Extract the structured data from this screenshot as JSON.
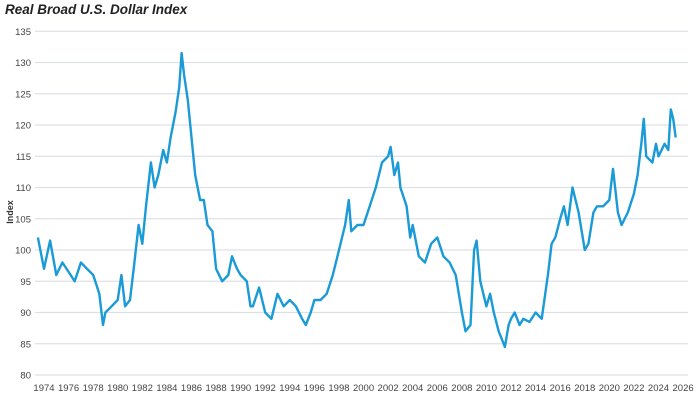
{
  "chart_data": {
    "type": "line",
    "title": "Real Broad U.S. Dollar Index",
    "xlabel": "",
    "ylabel": "Index",
    "ylim": [
      80,
      135
    ],
    "yticks": [
      80,
      85,
      90,
      95,
      100,
      105,
      110,
      115,
      120,
      125,
      130,
      135
    ],
    "xticks": [
      1974,
      1976,
      1978,
      1980,
      1982,
      1984,
      1986,
      1988,
      1990,
      1992,
      1994,
      1996,
      1998,
      2000,
      2002,
      2004,
      2006,
      2008,
      2010,
      2012,
      2014,
      2016,
      2018,
      2020,
      2022,
      2024,
      2026
    ],
    "grid": true,
    "line_color": "#1a9ad6",
    "series": [
      {
        "name": "Real Broad U.S. Dollar Index",
        "x": [
          1973.5,
          1974,
          1974.5,
          1975,
          1975.5,
          1976,
          1976.5,
          1977,
          1977.5,
          1978,
          1978.5,
          1978.8,
          1979,
          1979.5,
          1980,
          1980.3,
          1980.6,
          1981,
          1981.3,
          1981.7,
          1982,
          1982.3,
          1982.7,
          1983,
          1983.3,
          1983.7,
          1984,
          1984.3,
          1984.7,
          1985,
          1985.2,
          1985.4,
          1985.7,
          1986,
          1986.3,
          1986.7,
          1987,
          1987.3,
          1987.7,
          1988,
          1988.5,
          1989,
          1989.3,
          1989.7,
          1990,
          1990.5,
          1990.8,
          1991,
          1991.5,
          1992,
          1992.5,
          1993,
          1993.5,
          1994,
          1994.5,
          1995,
          1995.3,
          1995.7,
          1996,
          1996.5,
          1997,
          1997.5,
          1998,
          1998.5,
          1998.8,
          1999,
          1999.5,
          2000,
          2000.5,
          2001,
          2001.5,
          2002,
          2002.2,
          2002.5,
          2002.8,
          2003,
          2003.5,
          2003.8,
          2004,
          2004.5,
          2005,
          2005.5,
          2006,
          2006.5,
          2007,
          2007.5,
          2008,
          2008.3,
          2008.7,
          2009,
          2009.2,
          2009.5,
          2010,
          2010.3,
          2010.6,
          2011,
          2011.5,
          2011.8,
          2012,
          2012.3,
          2012.7,
          2013,
          2013.5,
          2014,
          2014.5,
          2015,
          2015.3,
          2015.6,
          2016,
          2016.3,
          2016.6,
          2017,
          2017.5,
          2018,
          2018.3,
          2018.7,
          2019,
          2019.5,
          2020,
          2020.3,
          2020.7,
          2021,
          2021.5,
          2022,
          2022.3,
          2022.6,
          2022.8,
          2023,
          2023.5,
          2023.8,
          2024,
          2024.5,
          2024.8,
          2025,
          2025.2,
          2025.4
        ],
        "values": [
          102,
          97,
          101.5,
          96,
          98,
          96.5,
          95,
          98,
          97,
          96,
          93,
          88,
          90,
          91,
          92,
          96,
          91,
          92,
          97,
          104,
          101,
          107,
          114,
          110,
          112,
          116,
          114,
          118,
          122,
          126,
          131.5,
          128,
          124,
          118,
          112,
          108,
          108,
          104,
          103,
          97,
          95,
          96,
          99,
          97,
          96,
          95,
          91,
          91,
          94,
          90,
          89,
          93,
          91,
          92,
          91,
          89,
          88,
          90,
          92,
          92,
          93,
          96,
          100,
          104,
          108,
          103,
          104,
          104,
          107,
          110,
          114,
          115,
          116.5,
          112,
          114,
          110,
          107,
          102,
          104,
          99,
          98,
          101,
          102,
          99,
          98,
          96,
          90,
          87,
          88,
          100,
          101.5,
          95,
          91,
          93,
          90,
          87,
          84.5,
          88,
          89,
          90,
          88,
          89,
          88.5,
          90,
          89,
          96,
          101,
          102,
          105,
          107,
          104,
          110,
          106,
          100,
          101,
          106,
          107,
          107,
          108,
          113,
          106,
          104,
          106,
          109,
          112,
          117,
          121,
          115,
          114,
          117,
          115,
          117,
          116,
          122.5,
          121,
          118
        ]
      }
    ]
  }
}
